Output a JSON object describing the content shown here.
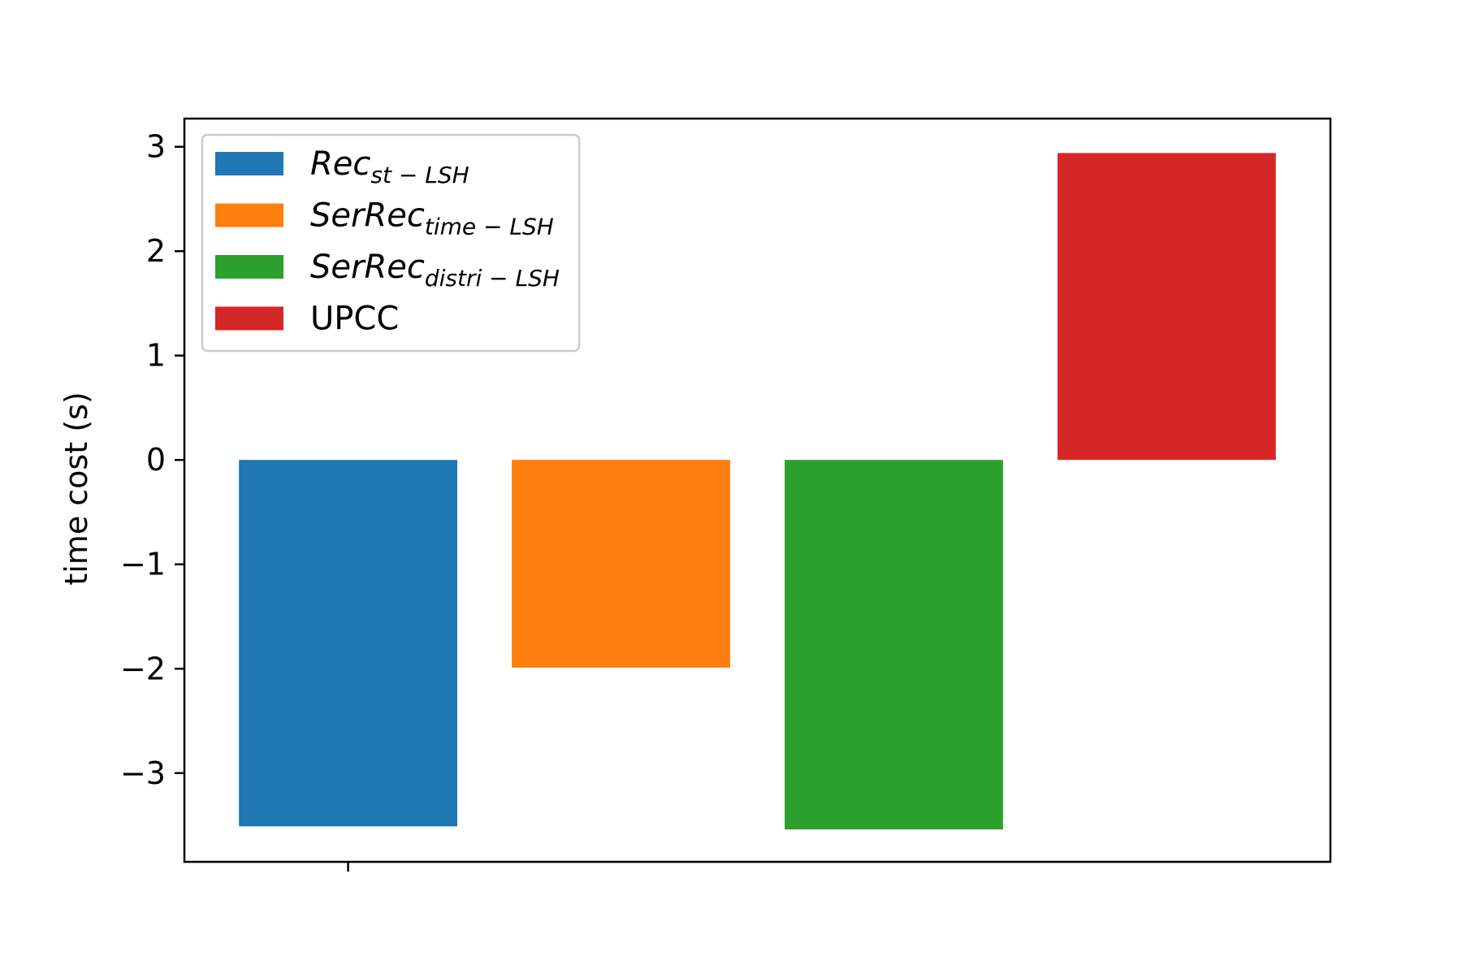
{
  "chart_data": {
    "type": "bar",
    "title": "",
    "xlabel": "",
    "ylabel": "time cost (s)",
    "ylim": [
      -3.85,
      3.27
    ],
    "y_ticks": [
      3,
      2,
      1,
      0,
      -1,
      -2,
      -3
    ],
    "y_tick_labels": [
      "3",
      "2",
      "1",
      "0",
      "−1",
      "−2",
      "−3"
    ],
    "x_ticks": [
      ""
    ],
    "grid": false,
    "legend_position": "top-left",
    "series": [
      {
        "name": "Rec",
        "name_subscript": "st − LSH",
        "value": -3.51,
        "color": "#1f77b4"
      },
      {
        "name": "SerRec",
        "name_subscript": "time − LSH",
        "value": -1.99,
        "color": "#ff7f0e"
      },
      {
        "name": "SerRec",
        "name_subscript": "distri − LSH",
        "value": -3.54,
        "color": "#2ca02c"
      },
      {
        "name": "UPCC",
        "name_subscript": "",
        "value": 2.94,
        "color": "#d62728"
      }
    ]
  }
}
